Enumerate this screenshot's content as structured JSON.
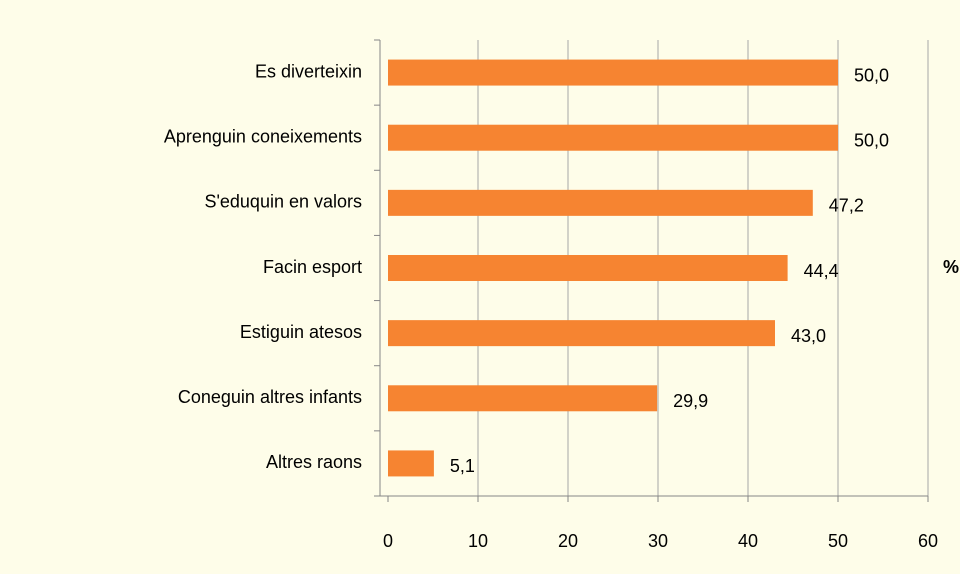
{
  "chart_data": {
    "type": "bar",
    "orientation": "horizontal",
    "categories": [
      "Es diverteixin",
      "Aprenguin coneixements",
      "S'eduquin en valors",
      "Facin esport",
      "Estiguin atesos",
      "Coneguin altres infants",
      "Altres raons"
    ],
    "values": [
      50.0,
      50.0,
      47.2,
      44.4,
      43.0,
      29.9,
      5.1
    ],
    "value_labels": [
      "50,0",
      "50,0",
      "47,2",
      "44,4",
      "43,0",
      "29,9",
      "5,1"
    ],
    "color": "#f68431",
    "xlim": [
      0,
      60
    ],
    "xticks": [
      0,
      10,
      20,
      30,
      40,
      50,
      60
    ],
    "axis_label": "%",
    "grid": true
  }
}
